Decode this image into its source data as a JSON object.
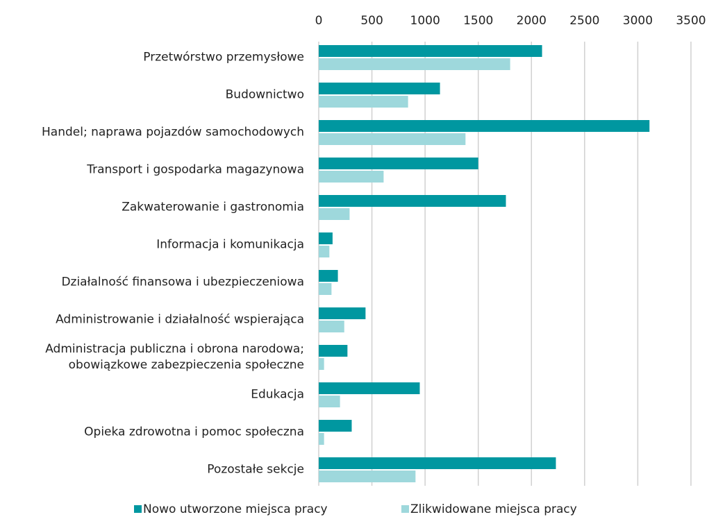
{
  "chart_data": {
    "type": "bar",
    "orientation": "horizontal",
    "categories": [
      "Przetwórstwo przemysłowe",
      "Budownictwo",
      "Handel; naprawa pojazdów samochodowych",
      "Transport i gospodarka magazynowa",
      "Zakwaterowanie i gastronomia",
      "Informacja i komunikacja",
      "Działalność finansowa i ubezpieczeniowa",
      "Administrowanie i działalność wspierająca",
      "Administracja publiczna i obrona narodowa;\nobowiązkowe zabezpieczenia społeczne",
      "Edukacja",
      "Opieka zdrowotna i pomoc społeczna",
      "Pozostałe sekcje"
    ],
    "series": [
      {
        "name": "Nowo utworzone miejsca pracy",
        "color": "#0097a0",
        "values": [
          2100,
          1140,
          3110,
          1500,
          1760,
          130,
          180,
          440,
          270,
          950,
          310,
          2230
        ]
      },
      {
        "name": "Zlikwidowane miejsca pracy",
        "color": "#9ed8dc",
        "values": [
          1800,
          840,
          1380,
          610,
          290,
          100,
          120,
          240,
          50,
          200,
          50,
          910
        ]
      }
    ],
    "xlim": [
      0,
      3500
    ],
    "xticks": [
      0,
      500,
      1000,
      1500,
      2000,
      2500,
      3000,
      3500
    ],
    "grid": true,
    "legend": "bottom"
  }
}
